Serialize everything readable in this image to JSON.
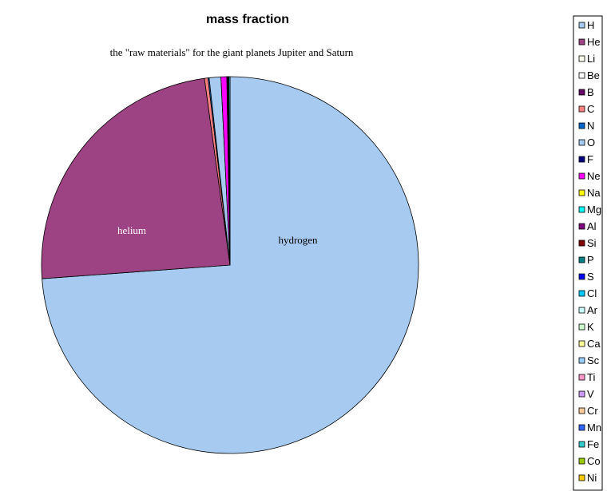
{
  "chart_data": {
    "type": "pie",
    "title": "mass fraction",
    "subtitle": "the \"raw materials\" for the giant planets Jupiter and Saturn",
    "legend_position": "right",
    "slices": [
      {
        "label": "H",
        "value": 73.9,
        "color": "#A6CAF0",
        "data_label": "hydrogen",
        "data_label_color": "#000000"
      },
      {
        "label": "He",
        "value": 24.0,
        "color": "#9D4283",
        "data_label": "helium",
        "data_label_color": "#FFFFFF"
      },
      {
        "label": "Li",
        "value": 0.0,
        "color": "#FFFFF0"
      },
      {
        "label": "Be",
        "value": 0.0,
        "color": "#FFFFFF"
      },
      {
        "label": "B",
        "value": 0.0,
        "color": "#660066"
      },
      {
        "label": "C",
        "value": 0.3,
        "color": "#FF8080"
      },
      {
        "label": "N",
        "value": 0.1,
        "color": "#0066CC"
      },
      {
        "label": "O",
        "value": 1.0,
        "color": "#A6CAF0"
      },
      {
        "label": "F",
        "value": 0.0,
        "color": "#000080"
      },
      {
        "label": "Ne",
        "value": 0.5,
        "color": "#FF00FF"
      },
      {
        "label": "Na",
        "value": 0.0,
        "color": "#FFFF00"
      },
      {
        "label": "Mg",
        "value": 0.06,
        "color": "#00FFFF"
      },
      {
        "label": "Al",
        "value": 0.0,
        "color": "#800080"
      },
      {
        "label": "Si",
        "value": 0.07,
        "color": "#800000"
      },
      {
        "label": "P",
        "value": 0.0,
        "color": "#008080"
      },
      {
        "label": "S",
        "value": 0.04,
        "color": "#0000FF"
      },
      {
        "label": "Cl",
        "value": 0.0,
        "color": "#00CCFF"
      },
      {
        "label": "Ar",
        "value": 0.0,
        "color": "#CCFFFF"
      },
      {
        "label": "K",
        "value": 0.0,
        "color": "#CCFFCC"
      },
      {
        "label": "Ca",
        "value": 0.0,
        "color": "#FFFF99"
      },
      {
        "label": "Sc",
        "value": 0.0,
        "color": "#99CCFF"
      },
      {
        "label": "Ti",
        "value": 0.0,
        "color": "#FF99CC"
      },
      {
        "label": "V",
        "value": 0.0,
        "color": "#CC99FF"
      },
      {
        "label": "Cr",
        "value": 0.0,
        "color": "#FFCC99"
      },
      {
        "label": "Mn",
        "value": 0.0,
        "color": "#3366FF"
      },
      {
        "label": "Fe",
        "value": 0.1,
        "color": "#33CCCC"
      },
      {
        "label": "Co",
        "value": 0.0,
        "color": "#99CC00"
      },
      {
        "label": "Ni",
        "value": 0.0,
        "color": "#FFCC00"
      }
    ]
  }
}
